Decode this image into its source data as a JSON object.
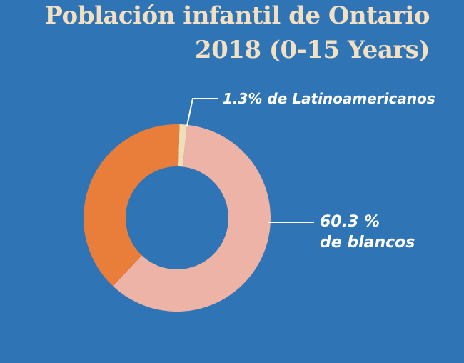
{
  "chart_data": {
    "type": "pie",
    "title": "Población infantil de Ontario",
    "subtitle": "2018 (0-15 Years)",
    "slices": [
      {
        "label": "Latinoamericanos",
        "value": 1.3,
        "color": "#f0ddb9"
      },
      {
        "label": "blancos",
        "value": 60.3,
        "color": "#ecb3a6"
      },
      {
        "label": "",
        "value": 38.4,
        "color": "#e97d3a"
      }
    ],
    "annotations": {
      "latino": "1.3% de Latinoamericanos",
      "blancos_value": "60.3 %",
      "blancos_label": "de blancos"
    },
    "colors": {
      "background": "#2f74b5",
      "title": "#f3dfc1",
      "label": "#ffffff"
    }
  }
}
